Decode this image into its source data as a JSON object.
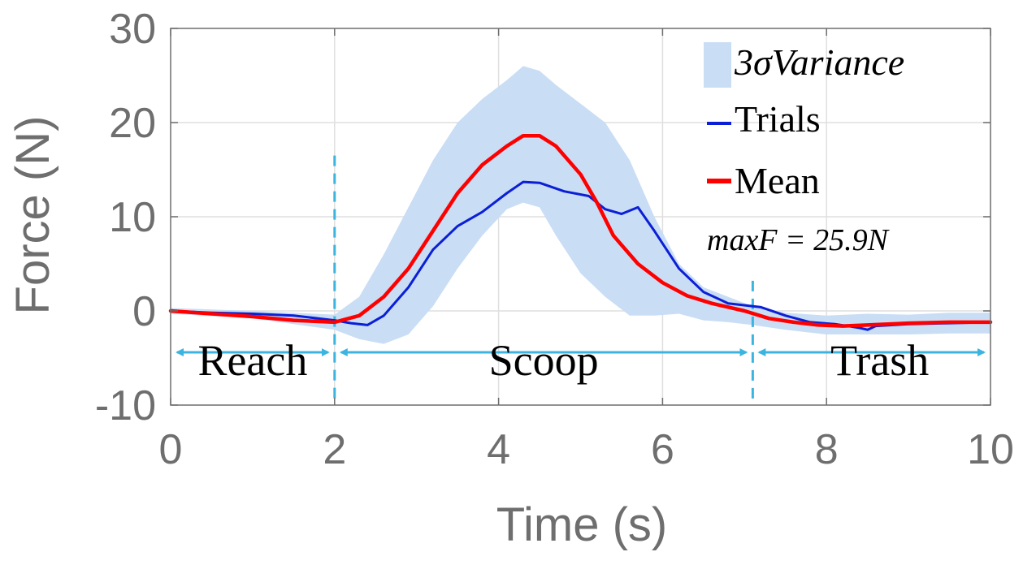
{
  "chart_data": {
    "type": "line",
    "xlabel": "Time (s)",
    "ylabel": "Force (N)",
    "xlim": [
      0,
      10
    ],
    "ylim": [
      -10,
      30
    ],
    "xticks": [
      "0",
      "2",
      "4",
      "6",
      "8",
      "10"
    ],
    "yticks": [
      "-10",
      "0",
      "10",
      "20",
      "30"
    ],
    "grid": true,
    "legend_position": "top-right",
    "legend": {
      "variance_label": "3σVariance",
      "trials_label": "Trials",
      "mean_label": "Mean"
    },
    "annotation": "maxF = 25.9N",
    "colors": {
      "variance": "#c9ddf5",
      "trials": "#0b1fd6",
      "mean": "#ff0000",
      "phase": "#3cb4e0",
      "axis": "#6e6e6e",
      "grid": "#dfdfdf"
    },
    "phase_boundaries": [
      2.0,
      7.1
    ],
    "phases": [
      {
        "name": "Reach",
        "start": 0.0,
        "end": 2.0
      },
      {
        "name": "Scoop",
        "start": 2.0,
        "end": 7.1
      },
      {
        "name": "Trash",
        "start": 7.1,
        "end": 10.0
      }
    ],
    "series": [
      {
        "name": "Mean",
        "x": [
          0,
          0.5,
          1.0,
          1.5,
          2.0,
          2.3,
          2.6,
          2.9,
          3.2,
          3.5,
          3.8,
          4.1,
          4.3,
          4.5,
          4.7,
          5.0,
          5.2,
          5.4,
          5.7,
          6.0,
          6.3,
          6.6,
          7.0,
          7.3,
          7.6,
          7.9,
          8.2,
          8.5,
          9.0,
          9.5,
          10.0
        ],
        "y": [
          0.0,
          -0.3,
          -0.6,
          -1.0,
          -1.2,
          -0.5,
          1.5,
          4.5,
          8.5,
          12.5,
          15.5,
          17.5,
          18.6,
          18.6,
          17.5,
          14.5,
          11.5,
          8.0,
          5.0,
          3.0,
          1.6,
          0.8,
          0.0,
          -0.8,
          -1.2,
          -1.5,
          -1.6,
          -1.5,
          -1.3,
          -1.2,
          -1.2
        ]
      },
      {
        "name": "Trials",
        "x": [
          0,
          0.5,
          1.0,
          1.5,
          2.0,
          2.2,
          2.4,
          2.6,
          2.9,
          3.2,
          3.5,
          3.8,
          4.1,
          4.3,
          4.5,
          4.8,
          5.1,
          5.3,
          5.5,
          5.7,
          5.9,
          6.2,
          6.5,
          6.8,
          7.2,
          7.5,
          7.8,
          8.1,
          8.4,
          8.5,
          8.6,
          9.0,
          9.5,
          10.0
        ],
        "y": [
          0.0,
          -0.2,
          -0.3,
          -0.5,
          -1.0,
          -1.3,
          -1.5,
          -0.5,
          2.5,
          6.5,
          9.0,
          10.5,
          12.5,
          13.7,
          13.6,
          12.7,
          12.2,
          10.8,
          10.3,
          11.0,
          8.5,
          4.5,
          2.0,
          0.8,
          0.4,
          -0.5,
          -1.2,
          -1.4,
          -1.8,
          -2.0,
          -1.6,
          -1.4,
          -1.3,
          -1.2
        ]
      }
    ],
    "variance_band": {
      "x": [
        0,
        1.0,
        2.0,
        2.3,
        2.6,
        2.9,
        3.2,
        3.5,
        3.8,
        4.1,
        4.3,
        4.5,
        4.7,
        5.0,
        5.3,
        5.6,
        5.9,
        6.2,
        6.5,
        6.8,
        7.1,
        7.5,
        8.0,
        8.5,
        9.0,
        9.5,
        10.0
      ],
      "upper": [
        0.3,
        0.0,
        -0.4,
        1.5,
        6.0,
        11.0,
        16.0,
        20.0,
        22.5,
        24.5,
        26.0,
        25.5,
        24.0,
        22.0,
        20.0,
        16.0,
        10.0,
        5.0,
        2.5,
        1.5,
        0.5,
        -0.2,
        -0.5,
        -0.3,
        -0.4,
        -0.2,
        -0.2
      ],
      "lower": [
        -0.3,
        -0.8,
        -2.0,
        -3.0,
        -3.5,
        -2.5,
        0.5,
        4.5,
        8.0,
        10.8,
        11.5,
        11.0,
        8.0,
        4.0,
        1.5,
        -0.5,
        -0.5,
        -0.3,
        -1.0,
        -1.2,
        -1.5,
        -2.0,
        -2.5,
        -2.5,
        -2.5,
        -2.4,
        -2.4
      ]
    }
  }
}
